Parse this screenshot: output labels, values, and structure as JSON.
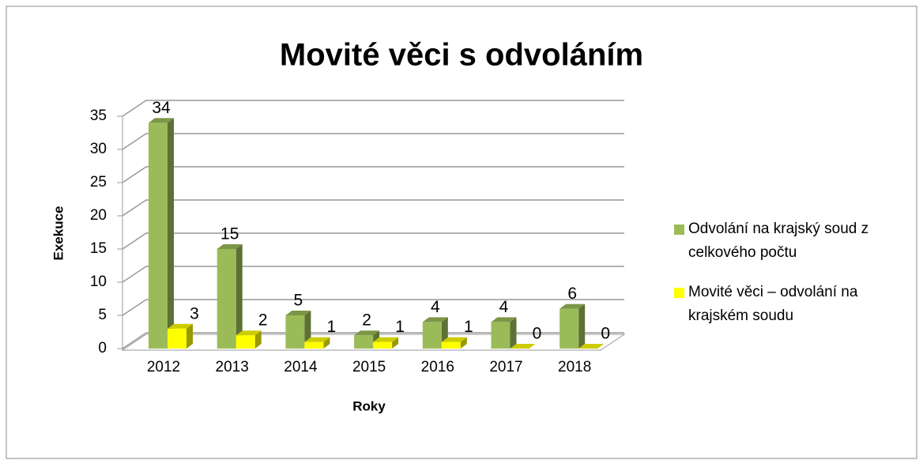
{
  "chart_data": {
    "type": "bar3d",
    "title": "Movité věci s odvoláním",
    "y_label": "Exekuce",
    "x_label": "Roky",
    "categories": [
      "2012",
      "2013",
      "2014",
      "2015",
      "2016",
      "2017",
      "2018"
    ],
    "series": [
      {
        "name": "Odvolání na krajský soud z celkového počtu",
        "color": "#9bbb59",
        "values": [
          34,
          15,
          5,
          2,
          4,
          4,
          6
        ]
      },
      {
        "name": "Movité věci – odvolání na krajském soudu",
        "color": "#ffff00",
        "values": [
          3,
          2,
          1,
          1,
          1,
          0,
          0
        ]
      }
    ],
    "ylim": [
      0,
      35
    ],
    "yticks": [
      0,
      5,
      10,
      15,
      20,
      25,
      30,
      35
    ],
    "grid": true,
    "legend": "right"
  }
}
